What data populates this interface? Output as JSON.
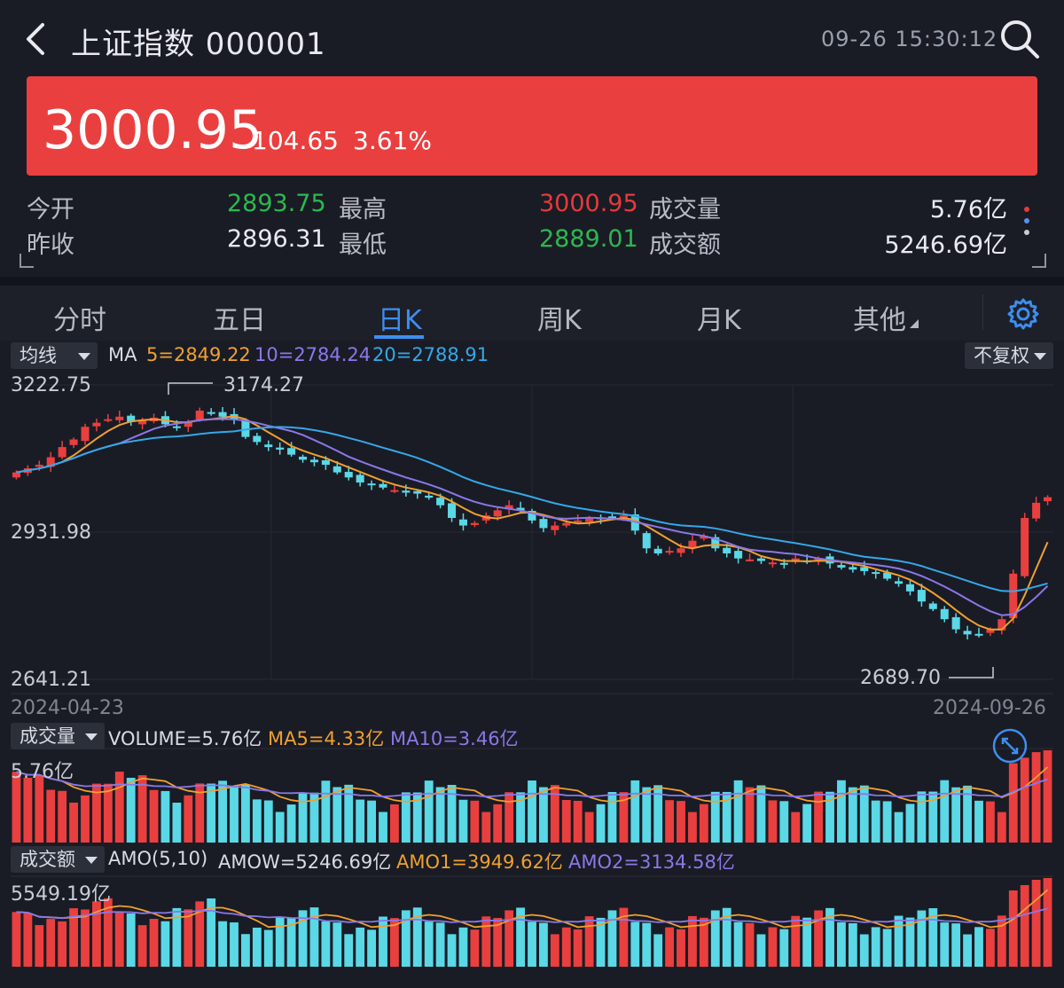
{
  "header": {
    "title": "上证指数 000001",
    "datetime": "09-26 15:30:12"
  },
  "quote": {
    "price": "3000.95",
    "change": "104.65",
    "change_pct": "3.61%",
    "up_color": "#ea3f3f",
    "down_color": "#2cb84f"
  },
  "stats": {
    "open_label": "今开",
    "open": "2893.75",
    "prev_close_label": "昨收",
    "prev_close": "2896.31",
    "high_label": "最高",
    "high": "3000.95",
    "low_label": "最低",
    "low": "2889.01",
    "volume_label": "成交量",
    "volume": "5.76亿",
    "amount_label": "成交额",
    "amount": "5246.69亿"
  },
  "tabs": [
    {
      "label": "分时"
    },
    {
      "label": "五日"
    },
    {
      "label": "日K",
      "active": true
    },
    {
      "label": "周K"
    },
    {
      "label": "月K"
    },
    {
      "label": "其他"
    }
  ],
  "kline": {
    "indicator_select": "均线",
    "adjust_select": "不复权",
    "ma_prefix": "MA",
    "ma5": "5=2849.22",
    "ma10": "10=2784.24",
    "ma20": "20=2788.91",
    "ma5_color": "#f0a030",
    "ma10_color": "#8a78e8",
    "ma20_color": "#35a8e8",
    "y_top": "3222.75",
    "y_mid": "2931.98",
    "y_bottom": "2641.21",
    "peak_label": "3174.27",
    "trough_label": "2689.70",
    "date_start": "2024-04-23",
    "date_end": "2024-09-26"
  },
  "volume_panel": {
    "select": "成交量",
    "volume": "VOLUME=5.76亿",
    "ma5": "MA5=4.33亿",
    "ma10": "MA10=3.46亿",
    "max_label": "5.76亿"
  },
  "amount_panel": {
    "select": "成交额",
    "amo_params": "AMO(5,10)",
    "amow": "AMOW=5246.69亿",
    "amo1": "AMO1=3949.62亿",
    "amo2": "AMO2=3134.58亿",
    "max_label": "5549.19亿"
  },
  "chart_data": {
    "type": "candlestick",
    "x_start": "2024-04-23",
    "x_end": "2024-09-26",
    "ylim": [
      2641.21,
      3222.75
    ],
    "y_ticks": [
      3222.75,
      2931.98,
      2641.21
    ],
    "close_series": [
      3050,
      3058,
      3065,
      3080,
      3100,
      3115,
      3140,
      3148,
      3155,
      3160,
      3150,
      3152,
      3158,
      3145,
      3140,
      3150,
      3172,
      3168,
      3160,
      3155,
      3120,
      3110,
      3100,
      3095,
      3085,
      3075,
      3070,
      3065,
      3050,
      3040,
      3030,
      3025,
      3020,
      3015,
      3010,
      3008,
      3000,
      2985,
      2960,
      2945,
      2950,
      2965,
      2975,
      2985,
      2975,
      2955,
      2940,
      2945,
      2950,
      2955,
      2960,
      2958,
      2962,
      2965,
      2935,
      2900,
      2890,
      2895,
      2900,
      2915,
      2925,
      2900,
      2890,
      2880,
      2878,
      2875,
      2872,
      2870,
      2880,
      2875,
      2880,
      2870,
      2862,
      2858,
      2855,
      2850,
      2840,
      2830,
      2815,
      2795,
      2780,
      2760,
      2740,
      2730,
      2728,
      2740,
      2760,
      2850,
      2960,
      2990,
      3000.95
    ],
    "volume_ma_hint": "MA5=4.33亿, MA10=3.46亿"
  }
}
